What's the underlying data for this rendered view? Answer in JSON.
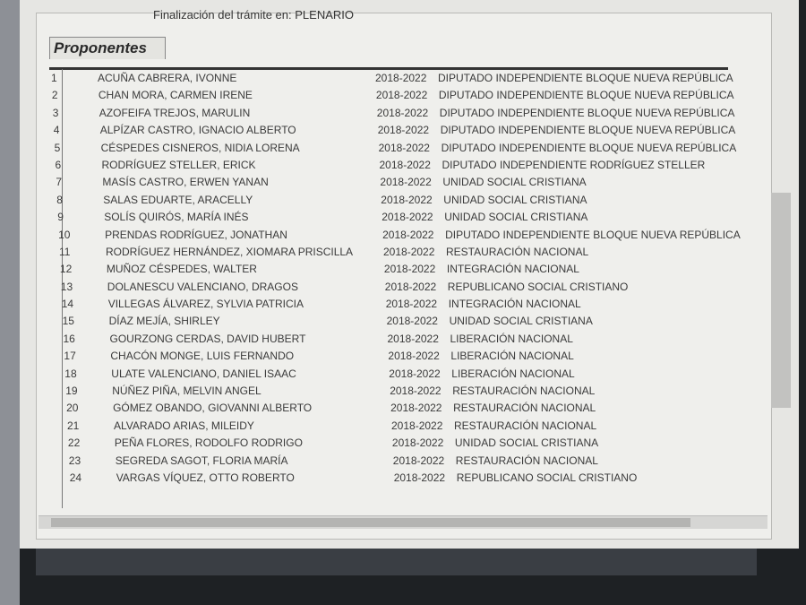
{
  "header": {
    "status": "Finalización del trámite en: PLENARIO"
  },
  "section": {
    "title": "Proponentes"
  },
  "table": {
    "rows": [
      [
        1,
        "ACUÑA CABRERA, IVONNE",
        "2018-2022",
        "DIPUTADO INDEPENDIENTE BLOQUE NUEVA REPÚBLICA"
      ],
      [
        2,
        "CHAN MORA, CARMEN IRENE",
        "2018-2022",
        "DIPUTADO INDEPENDIENTE BLOQUE NUEVA REPÚBLICA"
      ],
      [
        3,
        "AZOFEIFA TREJOS, MARULIN",
        "2018-2022",
        "DIPUTADO INDEPENDIENTE BLOQUE NUEVA REPÚBLICA"
      ],
      [
        4,
        "ALPÍZAR CASTRO, IGNACIO ALBERTO",
        "2018-2022",
        "DIPUTADO INDEPENDIENTE BLOQUE NUEVA REPÚBLICA"
      ],
      [
        5,
        "CÉSPEDES CISNEROS, NIDIA LORENA",
        "2018-2022",
        "DIPUTADO INDEPENDIENTE BLOQUE NUEVA REPÚBLICA"
      ],
      [
        6,
        "RODRÍGUEZ STELLER, ERICK",
        "2018-2022",
        "DIPUTADO INDEPENDIENTE RODRÍGUEZ STELLER"
      ],
      [
        7,
        "MASÍS CASTRO, ERWEN YANAN",
        "2018-2022",
        "UNIDAD SOCIAL CRISTIANA"
      ],
      [
        8,
        "SALAS EDUARTE, ARACELLY",
        "2018-2022",
        "UNIDAD SOCIAL CRISTIANA"
      ],
      [
        9,
        "SOLÍS QUIRÓS, MARÍA INÉS",
        "2018-2022",
        "UNIDAD SOCIAL CRISTIANA"
      ],
      [
        10,
        "PRENDAS RODRÍGUEZ, JONATHAN",
        "2018-2022",
        "DIPUTADO INDEPENDIENTE BLOQUE NUEVA REPÚBLICA"
      ],
      [
        11,
        "RODRÍGUEZ HERNÁNDEZ, XIOMARA PRISCILLA",
        "2018-2022",
        "RESTAURACIÓN NACIONAL"
      ],
      [
        12,
        "MUÑOZ CÉSPEDES, WALTER",
        "2018-2022",
        "INTEGRACIÓN NACIONAL"
      ],
      [
        13,
        "DOLANESCU VALENCIANO, DRAGOS",
        "2018-2022",
        "REPUBLICANO SOCIAL CRISTIANO"
      ],
      [
        14,
        "VILLEGAS ÁLVAREZ, SYLVIA PATRICIA",
        "2018-2022",
        "INTEGRACIÓN NACIONAL"
      ],
      [
        15,
        "DÍAZ MEJÍA, SHIRLEY",
        "2018-2022",
        "UNIDAD SOCIAL CRISTIANA"
      ],
      [
        16,
        "GOURZONG CERDAS, DAVID HUBERT",
        "2018-2022",
        "LIBERACIÓN NACIONAL"
      ],
      [
        17,
        "CHACÓN MONGE, LUIS FERNANDO",
        "2018-2022",
        "LIBERACIÓN NACIONAL"
      ],
      [
        18,
        "ULATE VALENCIANO, DANIEL ISAAC",
        "2018-2022",
        "LIBERACIÓN NACIONAL"
      ],
      [
        19,
        "NÚÑEZ PIÑA, MELVIN ANGEL",
        "2018-2022",
        "RESTAURACIÓN NACIONAL"
      ],
      [
        20,
        "GÓMEZ OBANDO, GIOVANNI ALBERTO",
        "2018-2022",
        "RESTAURACIÓN NACIONAL"
      ],
      [
        21,
        "ALVARADO ARIAS, MILEIDY",
        "2018-2022",
        "RESTAURACIÓN NACIONAL"
      ],
      [
        22,
        "PEÑA FLORES, RODOLFO RODRIGO",
        "2018-2022",
        "UNIDAD SOCIAL CRISTIANA"
      ],
      [
        23,
        "SEGREDA SAGOT, FLORIA MARÍA",
        "2018-2022",
        "RESTAURACIÓN NACIONAL"
      ],
      [
        24,
        "VARGAS VÍQUEZ, OTTO ROBERTO",
        "2018-2022",
        "REPUBLICANO SOCIAL CRISTIANO"
      ]
    ]
  }
}
